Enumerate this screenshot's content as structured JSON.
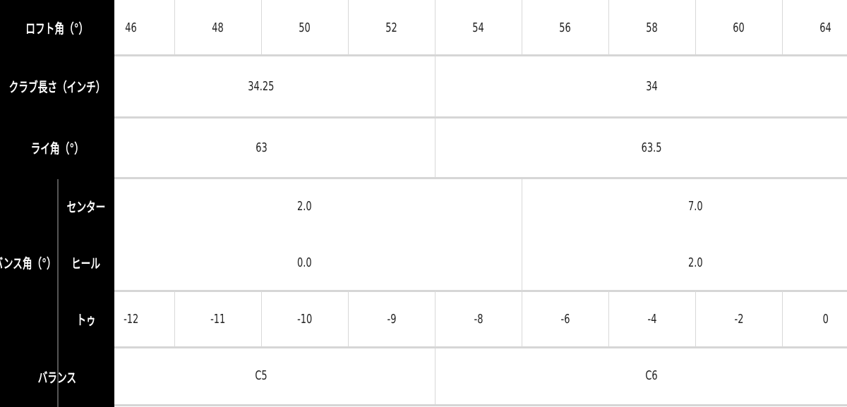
{
  "rows": {
    "loft": {
      "label": "ロフト角（°）",
      "values": [
        "46",
        "48",
        "50",
        "52",
        "54",
        "56",
        "58",
        "60",
        "64"
      ]
    },
    "length": {
      "label": "クラブ長さ（インチ）",
      "values": [
        "34.25",
        "34"
      ]
    },
    "lie": {
      "label": "ライ角（°）",
      "values": [
        "63",
        "63.5"
      ]
    },
    "bounce": {
      "label": "バンス角（°）",
      "center": {
        "label": "センター",
        "values": [
          "2.0",
          "7.0"
        ]
      },
      "heel": {
        "label": "ヒール",
        "values": [
          "0.0",
          "2.0"
        ]
      },
      "toe": {
        "label": "トゥ",
        "values": [
          "-12",
          "-11",
          "-10",
          "-9",
          "-8",
          "-6",
          "-4",
          "-2",
          "0"
        ]
      }
    },
    "balance": {
      "label": "バランス",
      "values": [
        "C5",
        "C6"
      ]
    }
  }
}
